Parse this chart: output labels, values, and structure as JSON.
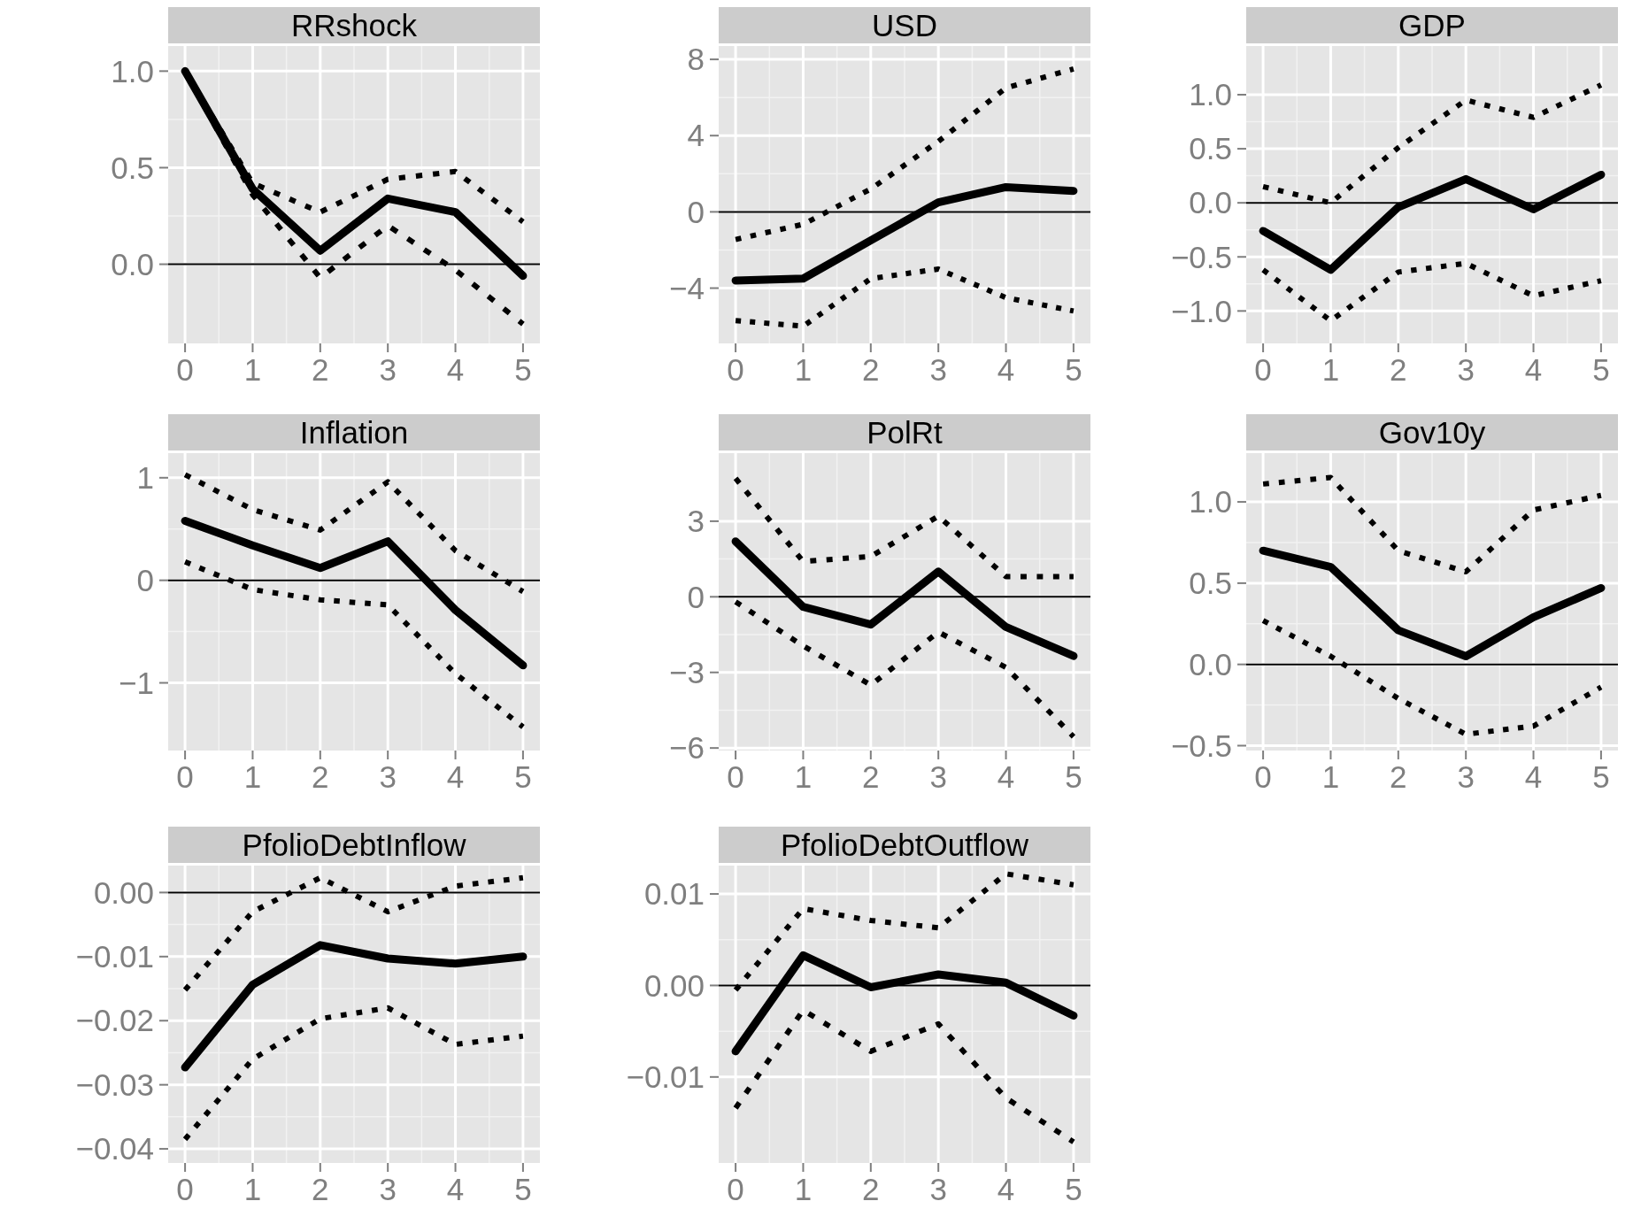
{
  "chart_data": [
    {
      "type": "line",
      "title": "RRshock",
      "x": [
        0,
        1,
        2,
        3,
        4,
        5
      ],
      "xlim": [
        -0.25,
        5.25
      ],
      "xticks": [
        0,
        1,
        2,
        3,
        4,
        5
      ],
      "ylim": [
        -0.41,
        1.13
      ],
      "yticks": [
        {
          "value": 0,
          "label": "0.0"
        },
        {
          "value": 0.5,
          "label": "0.5"
        },
        {
          "value": 1,
          "label": "1.0"
        }
      ],
      "grid": true,
      "ref_lines": [
        {
          "axis": "y",
          "value": 0,
          "color": "#000000"
        }
      ],
      "series": [
        {
          "color": "#000000",
          "line_style": "solid",
          "values": [
            1.0,
            0.39,
            0.07,
            0.34,
            0.27,
            -0.06
          ]
        },
        {
          "color": "#000000",
          "line_style": "dotted",
          "values": [
            1.0,
            0.42,
            0.27,
            0.44,
            0.48,
            0.22
          ]
        },
        {
          "color": "#000000",
          "line_style": "dotted",
          "values": [
            1.0,
            0.36,
            -0.07,
            0.2,
            -0.03,
            -0.31
          ]
        }
      ]
    },
    {
      "type": "line",
      "title": "USD",
      "x": [
        0,
        1,
        2,
        3,
        4,
        5
      ],
      "xlim": [
        -0.25,
        5.25
      ],
      "xticks": [
        0,
        1,
        2,
        3,
        4,
        5
      ],
      "ylim": [
        -6.9,
        8.7
      ],
      "yticks": [
        {
          "value": -4,
          "label": "−4"
        },
        0,
        4,
        8
      ],
      "grid": true,
      "ref_lines": [
        {
          "axis": "y",
          "value": 0,
          "color": "#000000"
        }
      ],
      "series": [
        {
          "color": "#000000",
          "line_style": "solid",
          "values": [
            -3.6,
            -3.5,
            -1.5,
            0.5,
            1.3,
            1.1
          ]
        },
        {
          "color": "#000000",
          "line_style": "dotted",
          "values": [
            -1.45,
            -0.65,
            1.2,
            3.7,
            6.5,
            7.5
          ]
        },
        {
          "color": "#000000",
          "line_style": "dotted",
          "values": [
            -5.7,
            -6.0,
            -3.5,
            -3.0,
            -4.5,
            -5.2
          ]
        }
      ]
    },
    {
      "type": "line",
      "title": "GDP",
      "x": [
        0,
        1,
        2,
        3,
        4,
        5
      ],
      "xlim": [
        -0.25,
        5.25
      ],
      "xticks": [
        0,
        1,
        2,
        3,
        4,
        5
      ],
      "ylim": [
        -1.3,
        1.45
      ],
      "yticks": [
        {
          "value": -1,
          "label": "−1.0"
        },
        {
          "value": -0.5,
          "label": "−0.5"
        },
        {
          "value": 0,
          "label": "0.0"
        },
        {
          "value": 0.5,
          "label": "0.5"
        },
        {
          "value": 1,
          "label": "1.0"
        }
      ],
      "grid": true,
      "ref_lines": [
        {
          "axis": "y",
          "value": 0,
          "color": "#000000"
        }
      ],
      "series": [
        {
          "color": "#000000",
          "line_style": "solid",
          "values": [
            -0.26,
            -0.62,
            -0.04,
            0.22,
            -0.06,
            0.26
          ]
        },
        {
          "color": "#000000",
          "line_style": "dotted",
          "values": [
            0.15,
            0,
            0.51,
            0.95,
            0.79,
            1.09
          ]
        },
        {
          "color": "#000000",
          "line_style": "dotted",
          "values": [
            -0.62,
            -1.09,
            -0.64,
            -0.56,
            -0.86,
            -0.72
          ]
        }
      ]
    },
    {
      "type": "line",
      "title": "Inflation",
      "x": [
        0,
        1,
        2,
        3,
        4,
        5
      ],
      "xlim": [
        -0.25,
        5.25
      ],
      "xticks": [
        0,
        1,
        2,
        3,
        4,
        5
      ],
      "ylim": [
        -1.66,
        1.24
      ],
      "yticks": [
        {
          "value": -1,
          "label": "−1"
        },
        0,
        1
      ],
      "grid": true,
      "ref_lines": [
        {
          "axis": "y",
          "value": 0,
          "color": "#000000"
        }
      ],
      "series": [
        {
          "color": "#000000",
          "line_style": "solid",
          "values": [
            0.58,
            0.34,
            0.12,
            0.38,
            -0.29,
            -0.83
          ]
        },
        {
          "color": "#000000",
          "line_style": "dotted",
          "values": [
            1.03,
            0.69,
            0.49,
            0.96,
            0.29,
            -0.11
          ]
        },
        {
          "color": "#000000",
          "line_style": "dotted",
          "values": [
            0.18,
            -0.09,
            -0.19,
            -0.24,
            -0.91,
            -1.43
          ]
        }
      ]
    },
    {
      "type": "line",
      "title": "PolRt",
      "x": [
        0,
        1,
        2,
        3,
        4,
        5
      ],
      "xlim": [
        -0.25,
        5.25
      ],
      "xticks": [
        0,
        1,
        2,
        3,
        4,
        5
      ],
      "ylim": [
        -6.1,
        5.7
      ],
      "yticks": [
        {
          "value": -6,
          "label": "−6"
        },
        {
          "value": -3,
          "label": "−3"
        },
        0,
        3
      ],
      "grid": true,
      "ref_lines": [
        {
          "axis": "y",
          "value": 0,
          "color": "#000000"
        }
      ],
      "series": [
        {
          "color": "#000000",
          "line_style": "solid",
          "values": [
            2.2,
            -0.4,
            -1.1,
            1.0,
            -1.2,
            -2.35
          ]
        },
        {
          "color": "#000000",
          "line_style": "dotted",
          "values": [
            4.7,
            1.4,
            1.6,
            3.2,
            0.8,
            0.8
          ]
        },
        {
          "color": "#000000",
          "line_style": "dotted",
          "values": [
            -0.2,
            -1.95,
            -3.5,
            -1.4,
            -2.8,
            -5.55
          ]
        }
      ]
    },
    {
      "type": "line",
      "title": "Gov10y",
      "x": [
        0,
        1,
        2,
        3,
        4,
        5
      ],
      "xlim": [
        -0.25,
        5.25
      ],
      "xticks": [
        0,
        1,
        2,
        3,
        4,
        5
      ],
      "ylim": [
        -0.53,
        1.3
      ],
      "yticks": [
        {
          "value": -0.5,
          "label": "−0.5"
        },
        {
          "value": 0,
          "label": "0.0"
        },
        {
          "value": 0.5,
          "label": "0.5"
        },
        {
          "value": 1,
          "label": "1.0"
        }
      ],
      "grid": true,
      "ref_lines": [
        {
          "axis": "y",
          "value": 0,
          "color": "#000000"
        }
      ],
      "series": [
        {
          "color": "#000000",
          "line_style": "solid",
          "values": [
            0.7,
            0.6,
            0.21,
            0.05,
            0.29,
            0.47
          ]
        },
        {
          "color": "#000000",
          "line_style": "dotted",
          "values": [
            1.11,
            1.15,
            0.7,
            0.57,
            0.95,
            1.04
          ]
        },
        {
          "color": "#000000",
          "line_style": "dotted",
          "values": [
            0.27,
            0.05,
            -0.21,
            -0.43,
            -0.38,
            -0.14
          ]
        }
      ]
    },
    {
      "type": "line",
      "title": "PfolioDebtInflow",
      "x": [
        0,
        1,
        2,
        3,
        4,
        5
      ],
      "xlim": [
        -0.25,
        5.25
      ],
      "xticks": [
        0,
        1,
        2,
        3,
        4,
        5
      ],
      "ylim": [
        -0.0422,
        0.0042
      ],
      "yticks": [
        {
          "value": -0.04,
          "label": "−0.04"
        },
        {
          "value": -0.03,
          "label": "−0.03"
        },
        {
          "value": -0.02,
          "label": "−0.02"
        },
        {
          "value": -0.01,
          "label": "−0.01"
        },
        {
          "value": 0,
          "label": "0.00"
        }
      ],
      "grid": true,
      "ref_lines": [
        {
          "axis": "y",
          "value": 0,
          "color": "#000000"
        }
      ],
      "series": [
        {
          "color": "#000000",
          "line_style": "solid",
          "values": [
            -0.0273,
            -0.0144,
            -0.0082,
            -0.0103,
            -0.0111,
            -0.01
          ]
        },
        {
          "color": "#000000",
          "line_style": "dotted",
          "values": [
            -0.0152,
            -0.003,
            0.0023,
            -0.003,
            0.001,
            0.0023
          ]
        },
        {
          "color": "#000000",
          "line_style": "dotted",
          "values": [
            -0.0385,
            -0.026,
            -0.0197,
            -0.018,
            -0.0237,
            -0.0224
          ]
        }
      ]
    },
    {
      "type": "line",
      "title": "PfolioDebtOutflow",
      "x": [
        0,
        1,
        2,
        3,
        4,
        5
      ],
      "xlim": [
        -0.25,
        5.25
      ],
      "xticks": [
        0,
        1,
        2,
        3,
        4,
        5
      ],
      "ylim": [
        -0.0194,
        0.0131
      ],
      "yticks": [
        {
          "value": -0.01,
          "label": "−0.01"
        },
        {
          "value": 0,
          "label": "0.00"
        },
        {
          "value": 0.01,
          "label": "0.01"
        }
      ],
      "grid": true,
      "ref_lines": [
        {
          "axis": "y",
          "value": 0,
          "color": "#000000"
        }
      ],
      "series": [
        {
          "color": "#000000",
          "line_style": "solid",
          "values": [
            -0.0072,
            0.0033,
            -0.0002,
            0.0012,
            0.0003,
            -0.0033
          ]
        },
        {
          "color": "#000000",
          "line_style": "dotted",
          "values": [
            -0.0005,
            0.0084,
            0.0071,
            0.0063,
            0.0122,
            0.011
          ]
        },
        {
          "color": "#000000",
          "line_style": "dotted",
          "values": [
            -0.0134,
            -0.0027,
            -0.0072,
            -0.0042,
            -0.0123,
            -0.0171
          ]
        }
      ]
    }
  ]
}
